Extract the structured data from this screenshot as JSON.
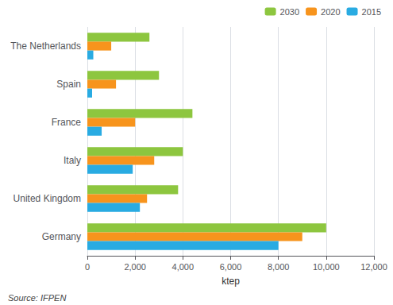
{
  "chart_data": {
    "type": "bar",
    "orientation": "horizontal",
    "categories": [
      "Germany",
      "United Kingdom",
      "Italy",
      "France",
      "Spain",
      "The Netherlands"
    ],
    "series": [
      {
        "name": "2030",
        "color": "#8DC63F",
        "values": [
          10000,
          3800,
          4000,
          4400,
          3000,
          2600
        ]
      },
      {
        "name": "2020",
        "color": "#F7941D",
        "values": [
          9000,
          2500,
          2800,
          2000,
          1200,
          1000
        ]
      },
      {
        "name": "2015",
        "color": "#29ABE2",
        "values": [
          8000,
          2200,
          1900,
          600,
          200,
          250
        ]
      }
    ],
    "xlabel": "ktep",
    "xlim": [
      0,
      12000
    ],
    "xticks": [
      0,
      {
        "value": 2000,
        "label": "2,000"
      },
      {
        "value": 4000,
        "label": "4,000"
      },
      {
        "value": 6000,
        "label": "6,000"
      },
      {
        "value": 8000,
        "label": "8,000"
      },
      {
        "value": 10000,
        "label": "10,000"
      },
      {
        "value": 12000,
        "label": "12,000"
      }
    ],
    "grid": true,
    "legend": "upper right",
    "annotations": [
      "Source: IFPEN"
    ]
  }
}
